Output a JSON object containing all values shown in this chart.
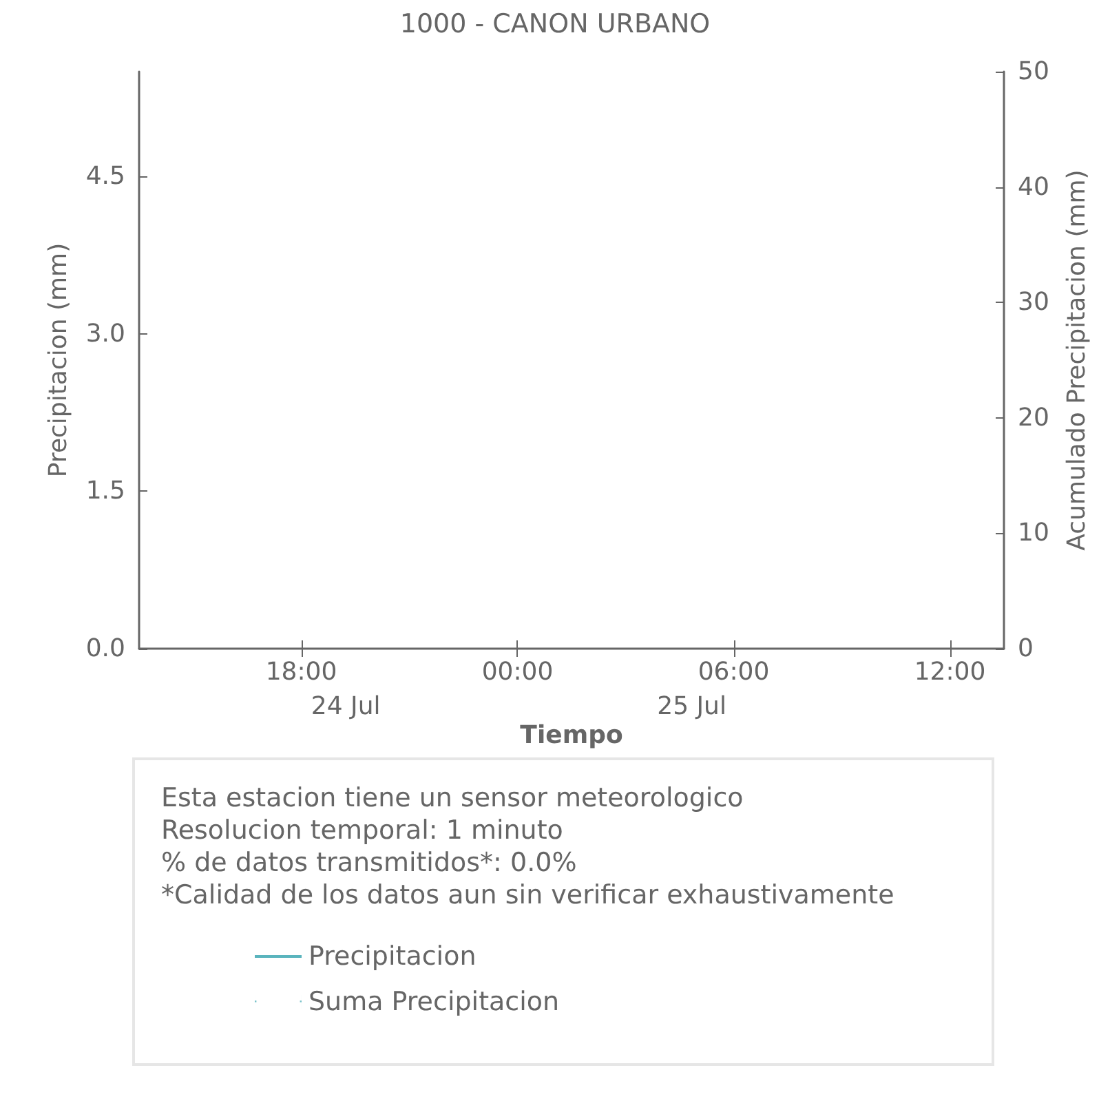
{
  "chart_data": {
    "type": "line",
    "title": "1000 - CANON URBANO",
    "xlabel": "Tiempo",
    "ylabel": "Precipitacion (mm)",
    "y2label": "Acumulado Precipitacion (mm)",
    "categories": [
      null,
      null,
      null,
      null,
      "18:00",
      null,
      null,
      null,
      null,
      null,
      "00:00",
      null,
      null,
      null,
      null,
      null,
      "06:00",
      null,
      null,
      null,
      null,
      null,
      "12:00",
      null
    ],
    "ylim": [
      0,
      5.5
    ],
    "yticks": [
      {
        "value": 0,
        "label": "0.0"
      },
      {
        "value": 1.5,
        "label": "1.5"
      },
      {
        "value": 3,
        "label": "3.0"
      },
      {
        "value": 4.5,
        "label": "4.5"
      }
    ],
    "y2lim": [
      0,
      50
    ],
    "y2ticks": [
      0,
      10,
      20,
      30,
      40,
      50
    ],
    "series": [
      {
        "name": "Precipitacion",
        "color": "#5ab4bd",
        "values": [
          null,
          null,
          null,
          null,
          null,
          null,
          null,
          null,
          null,
          null,
          null,
          null,
          null,
          null,
          null,
          null,
          null,
          null,
          null,
          null,
          null,
          null,
          null,
          null
        ]
      },
      {
        "name": "Suma Precipitacion",
        "type": "scatter",
        "color": "#5ab4bd",
        "values": [
          null,
          null,
          null,
          null,
          null,
          null,
          null,
          null,
          null,
          null,
          null,
          null,
          null,
          null,
          null,
          null,
          null,
          null,
          null,
          null,
          null,
          null,
          null,
          null
        ]
      }
    ],
    "annotations": [
      "24 Jul",
      "25 Jul",
      "Esta estacion tiene un sensor meteorologico",
      "Resolucion temporal: 1 minuto",
      "% de datos transmitidos*: 0.0%",
      "*Calidad de los datos aun sin verificar exhaustivamente"
    ],
    "legend": "bottom",
    "grid": false
  }
}
